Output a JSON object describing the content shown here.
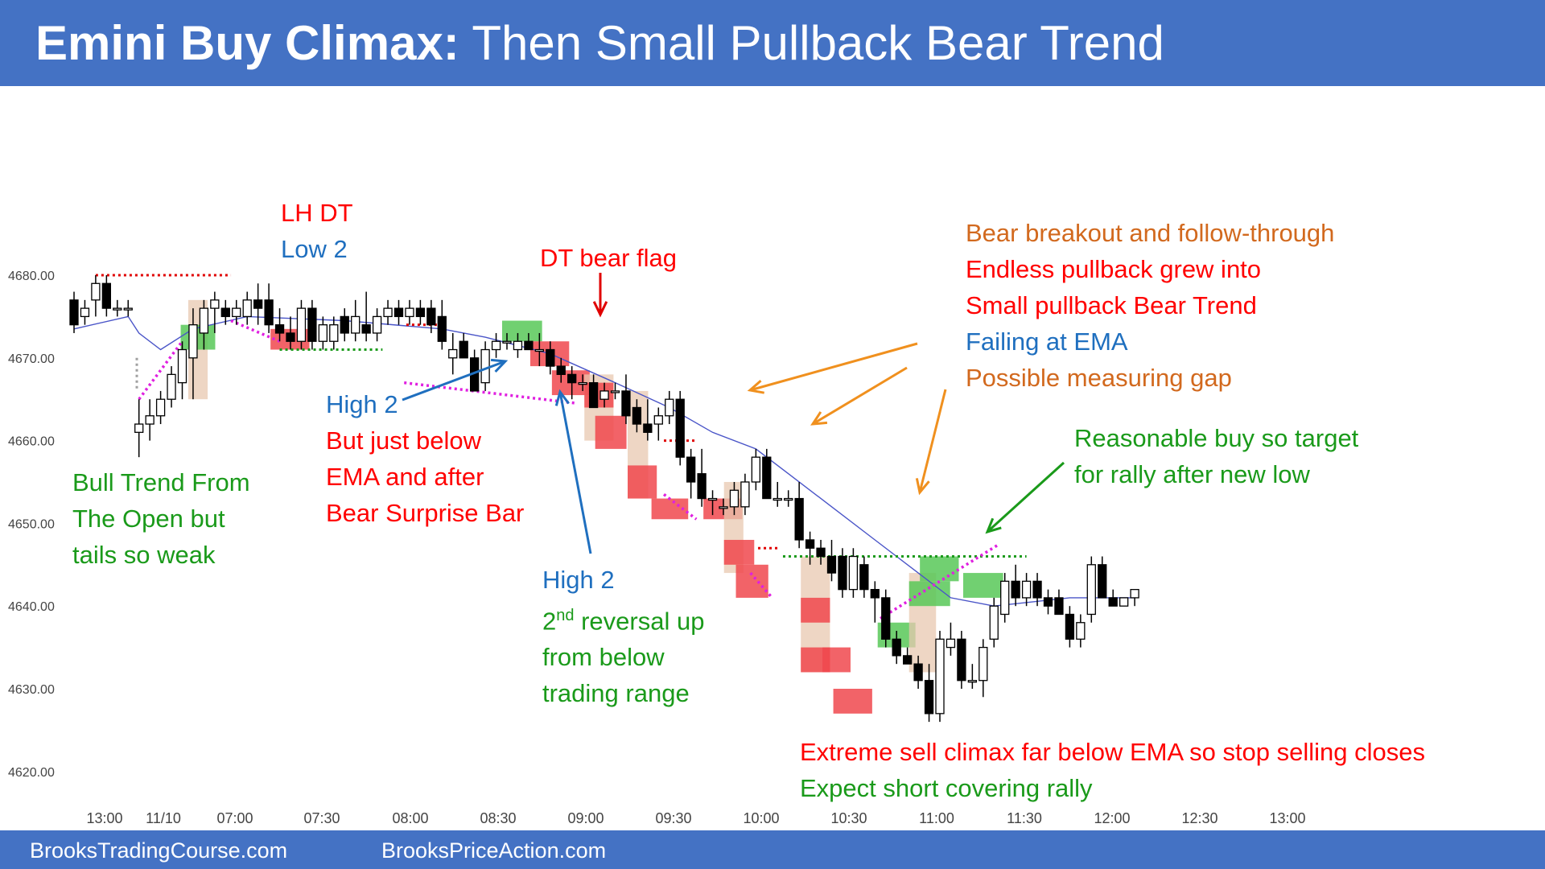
{
  "title": {
    "bold": "Emini Buy Climax:",
    "rest": "Then Small Pullback Bear Trend"
  },
  "footer": {
    "left": "BrooksTradingCourse.com",
    "right": "BrooksPriceAction.com"
  },
  "colors": {
    "header": "#4472c4",
    "bull_candle": "#ffffff",
    "bear_candle": "#000000",
    "ema": "#4a55c8",
    "red_text": "#ff0000",
    "blue_text": "#1f6fbf",
    "green_text": "#1a9a1a",
    "orange_text": "#d2691e",
    "red_box": "#f0484e",
    "green_box": "#58c858",
    "tan_box": "#e8c8b0",
    "magenta_line": "#e020e0"
  },
  "annotations": {
    "lh_dt": [
      "LH DT",
      "Low 2"
    ],
    "bull_trend": [
      "Bull Trend From",
      "The Open but",
      "tails so weak"
    ],
    "high2_first": [
      "High 2",
      "But just below",
      "EMA and after",
      "Bear Surprise Bar"
    ],
    "dt_bear_flag": "DT bear flag",
    "high2_second": {
      "line1": "High 2",
      "sup_base": "2",
      "sup": "nd",
      "rest": " reversal up",
      "line3": "from below",
      "line4": "trading range"
    },
    "bear_breakout": [
      "Bear breakout and follow-through",
      "Endless pullback grew into",
      "Small pullback Bear Trend",
      "Failing at EMA",
      "Possible measuring gap"
    ],
    "reasonable_buy": [
      "Reasonable buy so target",
      "for rally after new low"
    ],
    "sell_climax": [
      "Extreme sell climax far below EMA so stop selling closes",
      "Expect short covering rally"
    ]
  },
  "chart_data": {
    "type": "candlestick",
    "title": "Emini Buy Climax: Then Small Pullback Bear Trend",
    "y_ticks": [
      "4680.00",
      "4670.00",
      "4660.00",
      "4650.00",
      "4640.00",
      "4630.00",
      "4620.00"
    ],
    "ylim": [
      4617,
      4693
    ],
    "x_ticks": [
      "13:00",
      "11/10",
      "07:00",
      "07:30",
      "08:00",
      "08:30",
      "09:00",
      "09:30",
      "10:00",
      "10:30",
      "11:00",
      "11:30",
      "12:00",
      "12:30",
      "13:00"
    ],
    "candles": [
      {
        "o": 4677,
        "h": 4678,
        "l": 4673,
        "c": 4674
      },
      {
        "o": 4675,
        "h": 4677,
        "l": 4674,
        "c": 4676
      },
      {
        "o": 4677,
        "h": 4680,
        "l": 4675,
        "c": 4679
      },
      {
        "o": 4679,
        "h": 4680,
        "l": 4675,
        "c": 4676
      },
      {
        "o": 4676,
        "h": 4677,
        "l": 4675,
        "c": 4676
      },
      {
        "o": 4676,
        "h": 4677,
        "l": 4675,
        "c": 4676
      },
      {
        "o": 4661,
        "h": 4665,
        "l": 4658,
        "c": 4662
      },
      {
        "o": 4662,
        "h": 4665,
        "l": 4660,
        "c": 4663
      },
      {
        "o": 4663,
        "h": 4666,
        "l": 4662,
        "c": 4665
      },
      {
        "o": 4665,
        "h": 4669,
        "l": 4664,
        "c": 4668
      },
      {
        "o": 4667,
        "h": 4672,
        "l": 4665,
        "c": 4671
      },
      {
        "o": 4670,
        "h": 4676,
        "l": 4665,
        "c": 4674
      },
      {
        "o": 4673,
        "h": 4677,
        "l": 4671,
        "c": 4676
      },
      {
        "o": 4676,
        "h": 4678,
        "l": 4673,
        "c": 4677
      },
      {
        "o": 4676,
        "h": 4677,
        "l": 4674,
        "c": 4675
      },
      {
        "o": 4675,
        "h": 4677,
        "l": 4674,
        "c": 4676
      },
      {
        "o": 4675,
        "h": 4678,
        "l": 4674,
        "c": 4677
      },
      {
        "o": 4677,
        "h": 4679,
        "l": 4674,
        "c": 4676
      },
      {
        "o": 4677,
        "h": 4679,
        "l": 4673,
        "c": 4674
      },
      {
        "o": 4674,
        "h": 4676,
        "l": 4672,
        "c": 4673
      },
      {
        "o": 4673,
        "h": 4675,
        "l": 4671,
        "c": 4672
      },
      {
        "o": 4672,
        "h": 4677,
        "l": 4671,
        "c": 4676
      },
      {
        "o": 4676,
        "h": 4677,
        "l": 4671,
        "c": 4672
      },
      {
        "o": 4672,
        "h": 4675,
        "l": 4671,
        "c": 4674
      },
      {
        "o": 4672,
        "h": 4675,
        "l": 4671,
        "c": 4674
      },
      {
        "o": 4675,
        "h": 4676,
        "l": 4672,
        "c": 4673
      },
      {
        "o": 4673,
        "h": 4677,
        "l": 4672,
        "c": 4675
      },
      {
        "o": 4674,
        "h": 4678,
        "l": 4672,
        "c": 4673
      },
      {
        "o": 4673,
        "h": 4676,
        "l": 4672,
        "c": 4675
      },
      {
        "o": 4675,
        "h": 4677,
        "l": 4674,
        "c": 4676
      },
      {
        "o": 4676,
        "h": 4677,
        "l": 4674,
        "c": 4675
      },
      {
        "o": 4675,
        "h": 4677,
        "l": 4674,
        "c": 4676
      },
      {
        "o": 4676,
        "h": 4677,
        "l": 4674,
        "c": 4675
      },
      {
        "o": 4676,
        "h": 4677,
        "l": 4673,
        "c": 4674
      },
      {
        "o": 4675,
        "h": 4677,
        "l": 4671,
        "c": 4672
      },
      {
        "o": 4670,
        "h": 4673,
        "l": 4668,
        "c": 4671
      },
      {
        "o": 4672,
        "h": 4673,
        "l": 4670,
        "c": 4670
      },
      {
        "o": 4670,
        "h": 4671,
        "l": 4666,
        "c": 4666
      },
      {
        "o": 4667,
        "h": 4672,
        "l": 4666,
        "c": 4671
      },
      {
        "o": 4671,
        "h": 4673,
        "l": 4670,
        "c": 4672
      },
      {
        "o": 4672,
        "h": 4673,
        "l": 4671,
        "c": 4672
      },
      {
        "o": 4671,
        "h": 4673,
        "l": 4670,
        "c": 4672
      },
      {
        "o": 4672,
        "h": 4673,
        "l": 4671,
        "c": 4671
      },
      {
        "o": 4671,
        "h": 4673,
        "l": 4669,
        "c": 4671
      },
      {
        "o": 4671,
        "h": 4672,
        "l": 4668,
        "c": 4669
      },
      {
        "o": 4669,
        "h": 4670,
        "l": 4667,
        "c": 4668
      },
      {
        "o": 4668,
        "h": 4669,
        "l": 4665,
        "c": 4667
      },
      {
        "o": 4667,
        "h": 4668,
        "l": 4666,
        "c": 4667
      },
      {
        "o": 4667,
        "h": 4668,
        "l": 4664,
        "c": 4664
      },
      {
        "o": 4665,
        "h": 4667,
        "l": 4664,
        "c": 4666
      },
      {
        "o": 4666,
        "h": 4667,
        "l": 4665,
        "c": 4666
      },
      {
        "o": 4666,
        "h": 4668,
        "l": 4662,
        "c": 4663
      },
      {
        "o": 4664,
        "h": 4665,
        "l": 4661,
        "c": 4662
      },
      {
        "o": 4662,
        "h": 4665,
        "l": 4660,
        "c": 4661
      },
      {
        "o": 4662,
        "h": 4664,
        "l": 4660,
        "c": 4663
      },
      {
        "o": 4663,
        "h": 4666,
        "l": 4662,
        "c": 4665
      },
      {
        "o": 4665,
        "h": 4666,
        "l": 4657,
        "c": 4658
      },
      {
        "o": 4658,
        "h": 4659,
        "l": 4653,
        "c": 4655
      },
      {
        "o": 4656,
        "h": 4659,
        "l": 4652,
        "c": 4653
      },
      {
        "o": 4653,
        "h": 4654,
        "l": 4651,
        "c": 4653
      },
      {
        "o": 4652,
        "h": 4653,
        "l": 4651,
        "c": 4652
      },
      {
        "o": 4652,
        "h": 4655,
        "l": 4651,
        "c": 4654
      },
      {
        "o": 4652,
        "h": 4656,
        "l": 4651,
        "c": 4655
      },
      {
        "o": 4655,
        "h": 4659,
        "l": 4654,
        "c": 4658
      },
      {
        "o": 4658,
        "h": 4659,
        "l": 4653,
        "c": 4653
      },
      {
        "o": 4653,
        "h": 4655,
        "l": 4652,
        "c": 4653
      },
      {
        "o": 4653,
        "h": 4654,
        "l": 4652,
        "c": 4653
      },
      {
        "o": 4653,
        "h": 4655,
        "l": 4647,
        "c": 4648
      },
      {
        "o": 4648,
        "h": 4649,
        "l": 4645,
        "c": 4647
      },
      {
        "o": 4647,
        "h": 4648,
        "l": 4645,
        "c": 4646
      },
      {
        "o": 4646,
        "h": 4648,
        "l": 4643,
        "c": 4644
      },
      {
        "o": 4646,
        "h": 4647,
        "l": 4641,
        "c": 4642
      },
      {
        "o": 4642,
        "h": 4647,
        "l": 4641,
        "c": 4646
      },
      {
        "o": 4645,
        "h": 4646,
        "l": 4641,
        "c": 4642
      },
      {
        "o": 4642,
        "h": 4643,
        "l": 4638,
        "c": 4641
      },
      {
        "o": 4641,
        "h": 4642,
        "l": 4635,
        "c": 4636
      },
      {
        "o": 4636,
        "h": 4637,
        "l": 4633,
        "c": 4634
      },
      {
        "o": 4634,
        "h": 4635,
        "l": 4633,
        "c": 4633
      },
      {
        "o": 4633,
        "h": 4634,
        "l": 4630,
        "c": 4631
      },
      {
        "o": 4631,
        "h": 4633,
        "l": 4626,
        "c": 4627
      },
      {
        "o": 4627,
        "h": 4637,
        "l": 4626,
        "c": 4636
      },
      {
        "o": 4635,
        "h": 4638,
        "l": 4634,
        "c": 4636
      },
      {
        "o": 4636,
        "h": 4637,
        "l": 4630,
        "c": 4631
      },
      {
        "o": 4631,
        "h": 4633,
        "l": 4630,
        "c": 4631
      },
      {
        "o": 4631,
        "h": 4636,
        "l": 4629,
        "c": 4635
      },
      {
        "o": 4636,
        "h": 4641,
        "l": 4635,
        "c": 4640
      },
      {
        "o": 4639,
        "h": 4644,
        "l": 4638,
        "c": 4643
      },
      {
        "o": 4643,
        "h": 4645,
        "l": 4640,
        "c": 4641
      },
      {
        "o": 4641,
        "h": 4644,
        "l": 4640,
        "c": 4643
      },
      {
        "o": 4643,
        "h": 4644,
        "l": 4640,
        "c": 4641
      },
      {
        "o": 4641,
        "h": 4642,
        "l": 4639,
        "c": 4640
      },
      {
        "o": 4641,
        "h": 4642,
        "l": 4639,
        "c": 4639
      },
      {
        "o": 4639,
        "h": 4640,
        "l": 4635,
        "c": 4636
      },
      {
        "o": 4636,
        "h": 4639,
        "l": 4635,
        "c": 4638
      },
      {
        "o": 4639,
        "h": 4646,
        "l": 4638,
        "c": 4645
      },
      {
        "o": 4645,
        "h": 4646,
        "l": 4641,
        "c": 4641
      },
      {
        "o": 4641,
        "h": 4642,
        "l": 4640,
        "c": 4640
      },
      {
        "o": 4640,
        "h": 4641,
        "l": 4640,
        "c": 4641
      },
      {
        "o": 4641,
        "h": 4642,
        "l": 4640,
        "c": 4642
      }
    ],
    "ema": [
      {
        "i": 0,
        "v": 4673.5
      },
      {
        "i": 5,
        "v": 4675.0
      },
      {
        "i": 6,
        "v": 4673.0
      },
      {
        "i": 8,
        "v": 4671.0
      },
      {
        "i": 11,
        "v": 4673.5
      },
      {
        "i": 16,
        "v": 4675.0
      },
      {
        "i": 25,
        "v": 4674.5
      },
      {
        "i": 34,
        "v": 4673.5
      },
      {
        "i": 38,
        "v": 4672.5
      },
      {
        "i": 44,
        "v": 4670.5
      },
      {
        "i": 50,
        "v": 4667.0
      },
      {
        "i": 55,
        "v": 4664.0
      },
      {
        "i": 59,
        "v": 4661.0
      },
      {
        "i": 63,
        "v": 4659.0
      },
      {
        "i": 66,
        "v": 4656.0
      },
      {
        "i": 70,
        "v": 4652.0
      },
      {
        "i": 74,
        "v": 4648.0
      },
      {
        "i": 78,
        "v": 4644.0
      },
      {
        "i": 81,
        "v": 4641.0
      },
      {
        "i": 85,
        "v": 4640.0
      },
      {
        "i": 92,
        "v": 4641.0
      },
      {
        "i": 98,
        "v": 4641.0
      }
    ],
    "boxes": [
      {
        "from": 11,
        "to": 11.9,
        "lo": 4665,
        "hi": 4677,
        "color": "tan"
      },
      {
        "from": 10.3,
        "to": 12.6,
        "lo": 4671,
        "hi": 4674,
        "color": "green"
      },
      {
        "from": 18.6,
        "to": 21.3,
        "lo": 4671,
        "hi": 4673.5,
        "color": "red"
      },
      {
        "from": 40,
        "to": 42.8,
        "lo": 4672,
        "hi": 4674.5,
        "color": "green"
      },
      {
        "from": 42.6,
        "to": 45.3,
        "lo": 4669,
        "hi": 4672,
        "color": "red"
      },
      {
        "from": 44.6,
        "to": 47.2,
        "lo": 4665.5,
        "hi": 4668.5,
        "color": "red"
      },
      {
        "from": 47.6,
        "to": 49.4,
        "lo": 4660,
        "hi": 4668,
        "color": "tan"
      },
      {
        "from": 47.6,
        "to": 49.4,
        "lo": 4664,
        "hi": 4667,
        "color": "red"
      },
      {
        "from": 48.6,
        "to": 50.6,
        "lo": 4659,
        "hi": 4663,
        "color": "red"
      },
      {
        "from": 51.6,
        "to": 52.6,
        "lo": 4653,
        "hi": 4666,
        "color": "tan"
      },
      {
        "from": 51.6,
        "to": 53.4,
        "lo": 4653,
        "hi": 4657,
        "color": "red"
      },
      {
        "from": 53.8,
        "to": 56.3,
        "lo": 4650.5,
        "hi": 4653,
        "color": "red"
      },
      {
        "from": 58.6,
        "to": 61.3,
        "lo": 4650.5,
        "hi": 4653,
        "color": "red"
      },
      {
        "from": 60.5,
        "to": 61.4,
        "lo": 4644,
        "hi": 4655,
        "color": "tan"
      },
      {
        "from": 60.5,
        "to": 62.4,
        "lo": 4645,
        "hi": 4648,
        "color": "red"
      },
      {
        "from": 61.6,
        "to": 63.7,
        "lo": 4641,
        "hi": 4645,
        "color": "red"
      },
      {
        "from": 67.6,
        "to": 69.4,
        "lo": 4632,
        "hi": 4646,
        "color": "tan"
      },
      {
        "from": 67.6,
        "to": 69.4,
        "lo": 4638,
        "hi": 4641,
        "color": "red"
      },
      {
        "from": 67.6,
        "to": 69.4,
        "lo": 4632,
        "hi": 4635,
        "color": "red"
      },
      {
        "from": 69.6,
        "to": 71.3,
        "lo": 4632,
        "hi": 4635,
        "color": "red"
      },
      {
        "from": 70.6,
        "to": 73.3,
        "lo": 4627,
        "hi": 4630,
        "color": "red"
      },
      {
        "from": 74.7,
        "to": 77.3,
        "lo": 4635,
        "hi": 4638,
        "color": "green"
      },
      {
        "from": 77.6,
        "to": 79.2,
        "lo": 4632,
        "hi": 4644,
        "color": "tan"
      },
      {
        "from": 77.6,
        "to": 80.5,
        "lo": 4640,
        "hi": 4643,
        "color": "green"
      },
      {
        "from": 78.6,
        "to": 81.3,
        "lo": 4643,
        "hi": 4646,
        "color": "green"
      },
      {
        "from": 82.6,
        "to": 85.4,
        "lo": 4641,
        "hi": 4644,
        "color": "green"
      }
    ],
    "dotted_lines": [
      {
        "from": 2,
        "to": 14.5,
        "price": 4680,
        "color": "red"
      },
      {
        "from": 19,
        "to": 28.5,
        "price": 4671,
        "color": "green"
      },
      {
        "from": 30.7,
        "to": 34,
        "price": 4674,
        "color": "red"
      },
      {
        "from": 54.5,
        "to": 57.5,
        "price": 4660,
        "color": "red"
      },
      {
        "from": 63.2,
        "to": 65.2,
        "price": 4647,
        "color": "red"
      },
      {
        "from": 65.5,
        "to": 88,
        "price": 4646,
        "color": "green"
      },
      {
        "from": 5.8,
        "to": 5.8,
        "price": 4670,
        "price2": 4666,
        "color": "gray"
      }
    ],
    "magenta_lines": [
      {
        "i1": 6,
        "p1": 4665,
        "i2": 10,
        "p2": 4672
      },
      {
        "i1": 14.5,
        "p1": 4674.5,
        "i2": 19,
        "p2": 4672
      },
      {
        "i1": 30.5,
        "p1": 4667,
        "i2": 46.5,
        "p2": 4664.5
      },
      {
        "i1": 54.5,
        "p1": 4653.5,
        "i2": 57.5,
        "p2": 4650.5
      },
      {
        "i1": 62.5,
        "p1": 4644,
        "i2": 64.5,
        "p2": 4641
      },
      {
        "i1": 74.5,
        "p1": 4638.5,
        "i2": 85.5,
        "p2": 4647.5
      }
    ]
  }
}
